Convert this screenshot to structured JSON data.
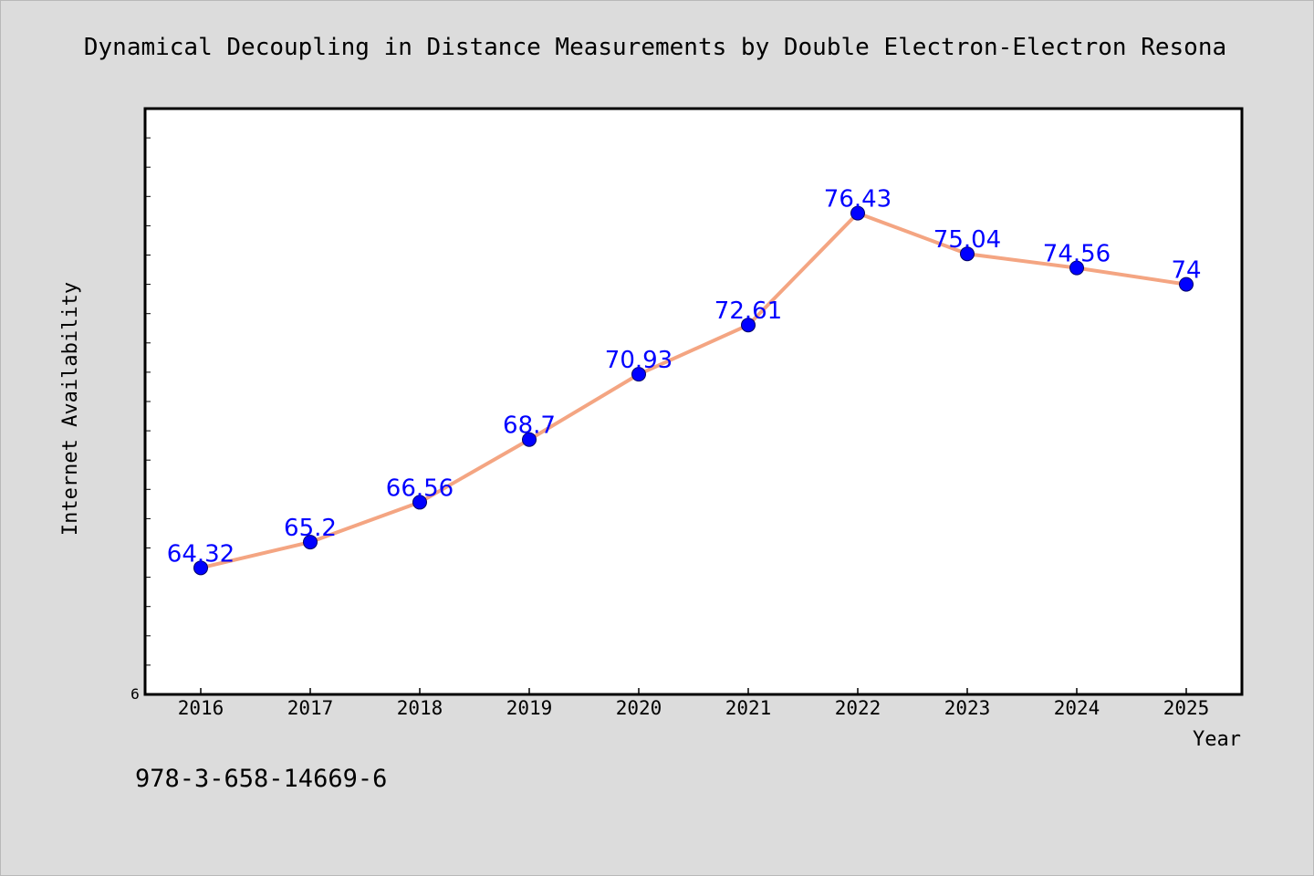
{
  "chart_data": {
    "type": "line",
    "title": "Dynamical Decoupling in Distance Measurements by Double Electron-Electron Resona",
    "xlabel": "Year",
    "ylabel": "Internet Availability",
    "categories": [
      "2016",
      "2017",
      "2018",
      "2019",
      "2020",
      "2021",
      "2022",
      "2023",
      "2024",
      "2025"
    ],
    "series": [
      {
        "values": [
          64.32,
          65.2,
          66.56,
          68.7,
          70.93,
          72.61,
          76.43,
          75.04,
          74.56,
          74
        ],
        "labels": [
          "64.32",
          "65.2",
          "66.56",
          "68.7",
          "70.93",
          "72.61",
          "76.43",
          "75.04",
          "74.56",
          "74"
        ]
      }
    ],
    "ylim": [
      60,
      80
    ],
    "ytick_labels": [
      "6"
    ],
    "grid": false,
    "legend": "none",
    "colors": {
      "line": "#f4a582",
      "marker": "#0000ff",
      "label": "#0000ff",
      "plot_bg": "#ffffff",
      "page_bg": "#dcdcdc"
    }
  },
  "footer": {
    "isbn": "978-3-658-14669-6"
  }
}
